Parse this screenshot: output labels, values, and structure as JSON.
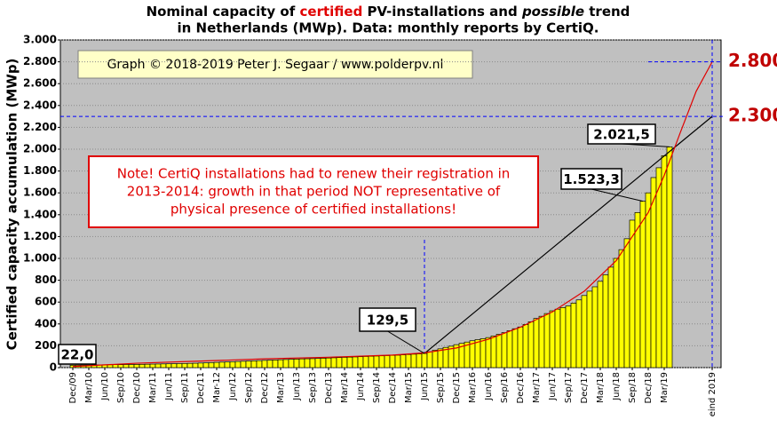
{
  "chart_data": {
    "type": "bar",
    "title": [
      "Nominal capacity of ",
      "certified",
      " PV-installations and ",
      "possible",
      " trend",
      "in Netherlands (MWp). Data: monthly reports by CertiQ."
    ],
    "y_label": "Certified capacity accumulation (MWp)",
    "copyright": "Graph © 2018-2019 Peter J. Segaar / www.polderpv.nl",
    "note": [
      "Note! CertiQ installations had to renew their registration in",
      "2013-2014: growth in that period NOT representative of",
      "physical presence of certified installations!"
    ],
    "categories": [
      "Dec/09",
      null,
      null,
      "Mar/10",
      null,
      null,
      "Jun/10",
      null,
      null,
      "Sep/10",
      null,
      null,
      "Dec/10",
      null,
      null,
      "Mar/11",
      null,
      null,
      "Jun/11",
      null,
      null,
      "Sep/11",
      null,
      null,
      "Dec/11",
      null,
      null,
      "Mar-12",
      null,
      null,
      "Jun/12",
      null,
      null,
      "Sep/12",
      null,
      null,
      "Dec/12",
      null,
      null,
      "Mar/13",
      null,
      null,
      "Jun/13",
      null,
      null,
      "Sep/13",
      null,
      null,
      "Dec/13",
      null,
      null,
      "Mar/14",
      null,
      null,
      "Jun/14",
      null,
      null,
      "Sep/14",
      null,
      null,
      "Dec/14",
      null,
      null,
      "Mar/15",
      null,
      null,
      "Jun/15",
      null,
      null,
      "Sep/15",
      null,
      null,
      "Dec/15",
      null,
      null,
      "Mar/16",
      null,
      null,
      "Jun/16",
      null,
      null,
      "Sep/16",
      null,
      null,
      "Dec/16",
      null,
      null,
      "Mar/17",
      null,
      null,
      "Jun/17",
      null,
      null,
      "Sep/17",
      null,
      null,
      "Dec/17",
      null,
      null,
      "Mar/18",
      null,
      null,
      "Jun/18",
      null,
      null,
      "Sep/18",
      null,
      null,
      "Dec/18",
      null,
      null,
      "Mar/19",
      null,
      null,
      null,
      null,
      null,
      null,
      null,
      null,
      "eind 2019"
    ],
    "values": [
      22,
      23,
      24,
      24,
      25,
      25,
      26,
      26,
      27,
      27,
      28,
      28,
      29,
      30,
      31,
      32,
      33,
      34,
      35,
      36,
      37,
      38,
      39,
      40,
      42,
      44,
      46,
      48,
      50,
      52,
      54,
      56,
      58,
      60,
      62,
      64,
      66,
      68,
      70,
      72,
      74,
      76,
      78,
      80,
      81,
      82,
      84,
      86,
      88,
      90,
      92,
      94,
      96,
      98,
      100,
      102,
      104,
      106,
      108,
      110,
      112,
      114,
      117,
      120,
      123,
      126,
      129.5,
      145,
      160,
      172,
      185,
      196,
      210,
      222,
      234,
      246,
      256,
      265,
      275,
      290,
      305,
      320,
      338,
      356,
      372,
      395,
      420,
      450,
      470,
      495,
      520,
      535,
      550,
      565,
      590,
      620,
      660,
      700,
      740,
      790,
      850,
      920,
      1000,
      1080,
      1180,
      1350,
      1420,
      1523.3,
      1600,
      1740,
      1830,
      1940,
      2021.5,
      null,
      null,
      null,
      null,
      null,
      null,
      null,
      null
    ],
    "value_labels": [
      "22,0",
      null,
      null,
      null,
      null,
      null,
      null,
      null,
      null,
      null,
      null,
      null,
      null,
      null,
      null,
      null,
      null,
      null,
      null,
      null,
      null,
      null,
      null,
      null,
      null,
      null,
      null,
      null,
      null,
      null,
      null,
      null,
      null,
      null,
      null,
      null,
      null,
      null,
      null,
      null,
      null,
      null,
      null,
      null,
      null,
      null,
      null,
      null,
      null,
      null,
      null,
      null,
      null,
      null,
      null,
      null,
      null,
      null,
      null,
      null,
      null,
      null,
      null,
      null,
      null,
      null,
      "129,5",
      null,
      null,
      null,
      null,
      null,
      null,
      null,
      null,
      null,
      null,
      null,
      null,
      null,
      null,
      null,
      null,
      null,
      null,
      null,
      null,
      null,
      null,
      null,
      null,
      null,
      null,
      null,
      null,
      null,
      null,
      null,
      null,
      null,
      null,
      null,
      null,
      null,
      null,
      null,
      null,
      "1.523,3",
      null,
      null,
      null,
      null,
      "2.021,5",
      null,
      null,
      null,
      null,
      null,
      null,
      null,
      null
    ],
    "color": "#ffff00",
    "lines": [
      {
        "color": "#000000",
        "x": [
          66,
          120
        ],
        "values": [
          129.5,
          2300
        ]
      },
      {
        "color": "#e00000",
        "x": [
          0,
          12,
          24,
          36,
          48,
          60,
          66,
          72,
          78,
          84,
          90,
          96,
          102,
          108,
          111,
          114,
          117,
          120
        ],
        "values": [
          10,
          40,
          60,
          80,
          95,
          115,
          135,
          180,
          260,
          370,
          510,
          700,
          980,
          1420,
          1760,
          2150,
          2530,
          2800
        ]
      }
    ],
    "hlines": [
      {
        "value": 2800,
        "label": "2.800"
      },
      {
        "value": 2300,
        "label": "2.300"
      }
    ],
    "vlines": [
      66,
      120
    ],
    "ylim": [
      0,
      3000
    ],
    "yticks": [
      0,
      200,
      400,
      600,
      800,
      {
        "value": 1000,
        "label": "1.000"
      },
      {
        "value": 1200,
        "label": "1.200"
      },
      {
        "value": 1400,
        "label": "1.400"
      },
      {
        "value": 1600,
        "label": "1.600"
      },
      {
        "value": 1800,
        "label": "1.800"
      },
      {
        "value": 2000,
        "label": "2.000"
      },
      {
        "value": 2200,
        "label": "2.200"
      },
      {
        "value": 2400,
        "label": "2.400"
      },
      {
        "value": 2600,
        "label": "2.600"
      },
      {
        "value": 2800,
        "label": "2.800"
      },
      {
        "value": 3000,
        "label": "3.000"
      }
    ],
    "grid": true
  }
}
